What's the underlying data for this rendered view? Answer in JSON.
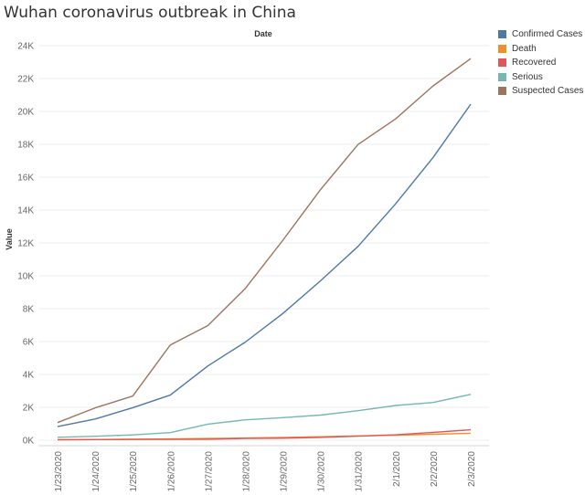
{
  "title": "Wuhan coronavirus outbreak in China",
  "chart_data": {
    "type": "line",
    "title": "Wuhan coronavirus outbreak in China",
    "xlabel": "Date",
    "ylabel": "Value",
    "x": [
      "1/23/2020",
      "1/24/2020",
      "1/25/2020",
      "1/26/2020",
      "1/27/2020",
      "1/28/2020",
      "1/29/2020",
      "1/30/2020",
      "1/31/2020",
      "2/1/2020",
      "2/2/2020",
      "2/3/2020"
    ],
    "ylim": [
      0,
      24000
    ],
    "yticks": [
      0,
      2000,
      4000,
      6000,
      8000,
      10000,
      12000,
      14000,
      16000,
      18000,
      20000,
      22000,
      24000
    ],
    "ytick_labels": [
      "0K",
      "2K",
      "4K",
      "6K",
      "8K",
      "10K",
      "12K",
      "14K",
      "16K",
      "18K",
      "20K",
      "22K",
      "24K"
    ],
    "grid": true,
    "legend_position": "top-right",
    "series": [
      {
        "name": "Confirmed Cases",
        "color": "#4e79a7",
        "values": [
          830,
          1287,
          1975,
          2744,
          4515,
          5974,
          7711,
          9692,
          11791,
          14380,
          17205,
          20438
        ]
      },
      {
        "name": "Death",
        "color": "#f28e2b",
        "values": [
          25,
          41,
          56,
          80,
          106,
          132,
          170,
          213,
          259,
          304,
          361,
          425
        ]
      },
      {
        "name": "Recovered",
        "color": "#e15759",
        "values": [
          34,
          38,
          49,
          51,
          60,
          103,
          124,
          171,
          243,
          328,
          475,
          632
        ]
      },
      {
        "name": "Serious",
        "color": "#76b7b2",
        "values": [
          177,
          237,
          324,
          461,
          976,
          1239,
          1370,
          1527,
          1795,
          2110,
          2296,
          2788
        ]
      },
      {
        "name": "Suspected Cases",
        "color": "#9c755f",
        "values": [
          1072,
          1965,
          2684,
          5794,
          6973,
          9239,
          12167,
          15238,
          17988,
          19544,
          21558,
          23214
        ]
      }
    ]
  }
}
